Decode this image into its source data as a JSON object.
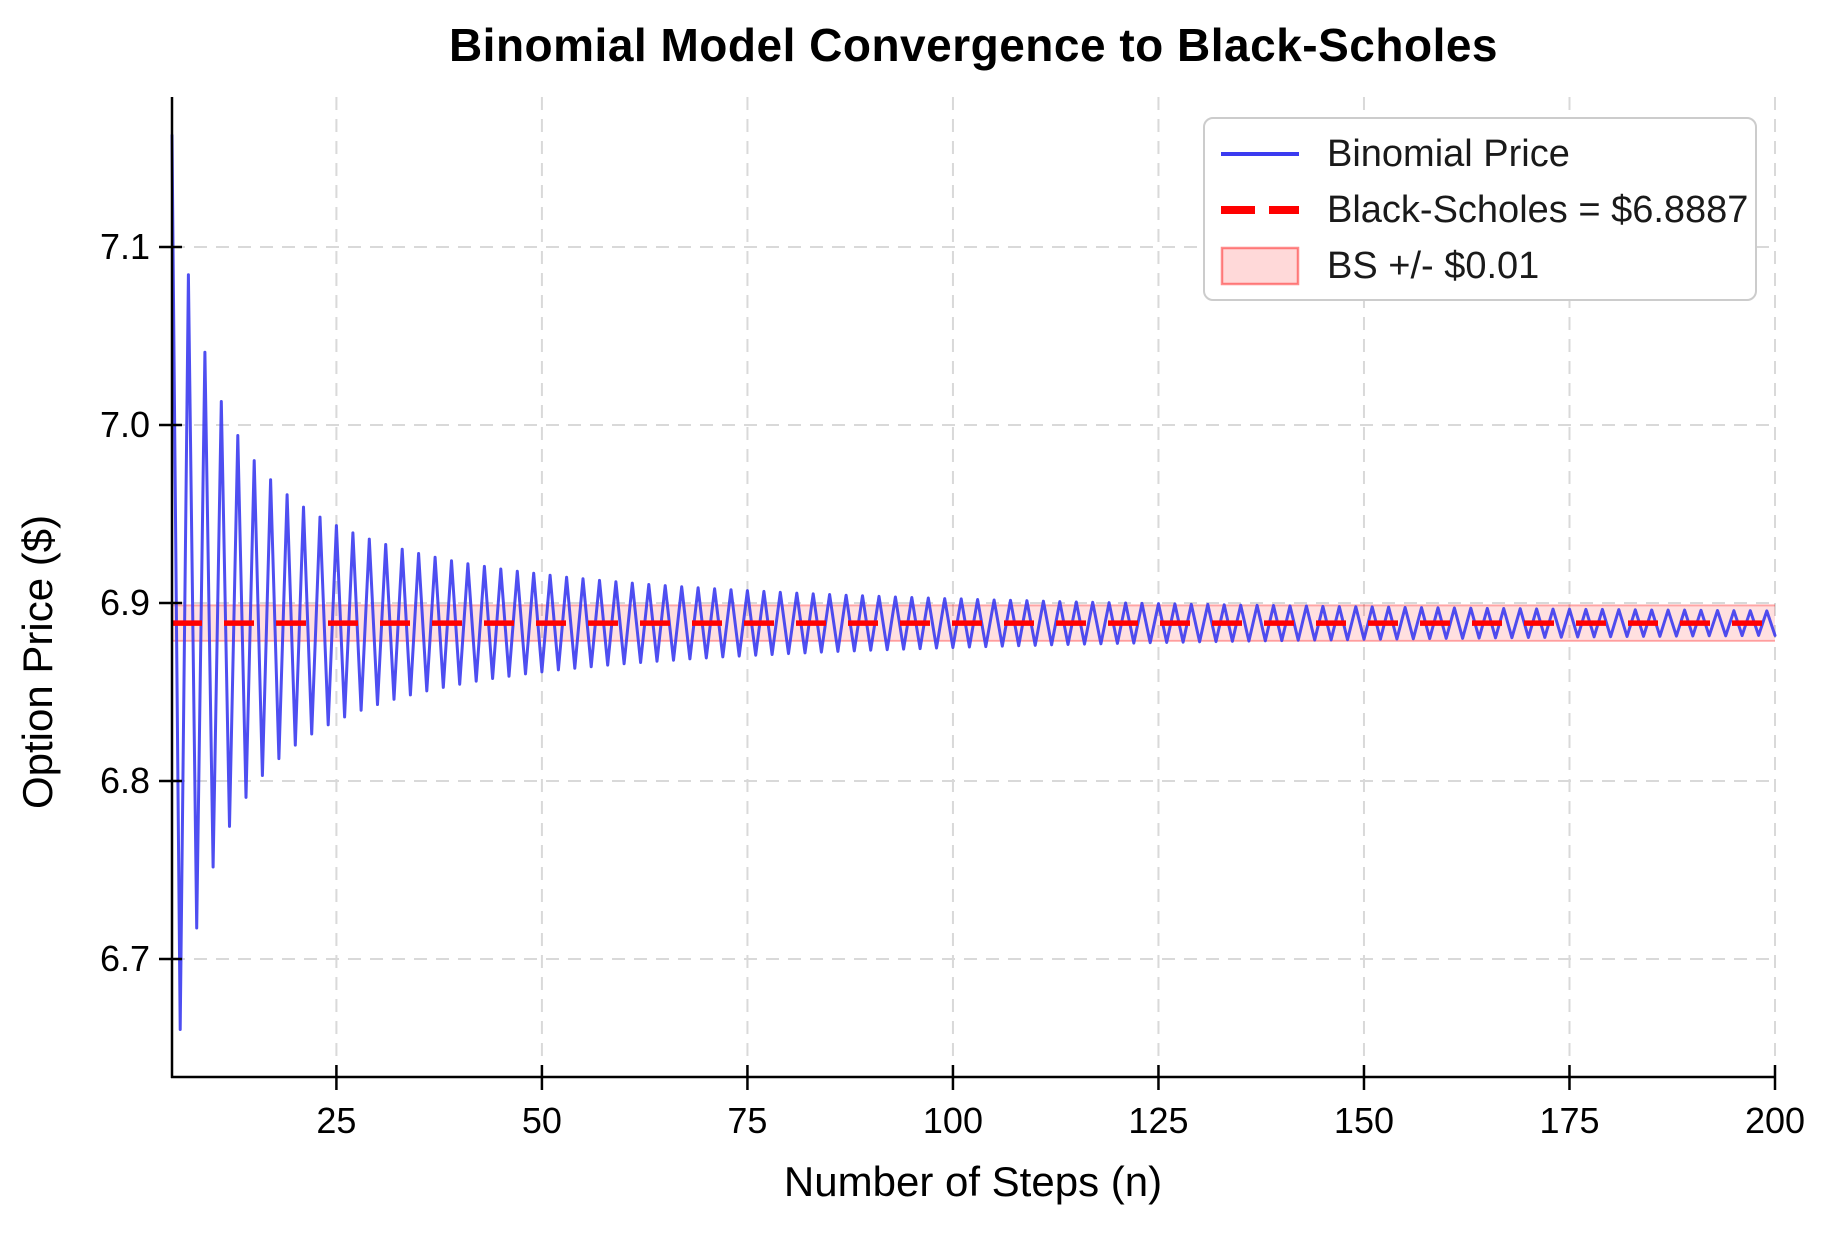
{
  "title": "Binomial Model Convergence to Black-Scholes",
  "axes": {
    "xlabel": "Number of Steps (n)",
    "ylabel": "Option Price ($)",
    "x_ticks": [
      25,
      50,
      75,
      100,
      125,
      150,
      175,
      200
    ],
    "y_ticks": [
      7.1,
      7.0,
      6.9,
      6.8,
      6.7
    ],
    "xlim": [
      5,
      200
    ],
    "ylim": [
      6.6337,
      7.1843
    ]
  },
  "legend": {
    "items": [
      {
        "label": "Binomial Price",
        "type": "solid-line",
        "color": "#3b3bf0"
      },
      {
        "label": "Black-Scholes = $6.8887",
        "type": "dashed-line",
        "color": "#ff0000"
      },
      {
        "label": "BS +/- $0.01",
        "type": "band",
        "color": "#ff0000"
      }
    ]
  },
  "colors": {
    "binomial_line": "#3b3bf0",
    "bs_line": "#ff0000",
    "band_fill_color": "#ff0000",
    "band_fill_alpha": 0.12,
    "band_edge_alpha": 0.3,
    "grid": "#d9d9d9",
    "spine": "#000000",
    "text": "#000000"
  },
  "chart_data": {
    "type": "line",
    "title": "Binomial Model Convergence to Black-Scholes",
    "xlabel": "Number of Steps (n)",
    "ylabel": "Option Price ($)",
    "xlim": [
      5,
      200
    ],
    "ylim": [
      6.6337,
      7.1843
    ],
    "grid": true,
    "legend_position": "upper right",
    "bs_price": 6.8887,
    "band_halfwidth": 0.01,
    "series": [
      {
        "name": "Binomial Price",
        "x_range": [
          5,
          200,
          1
        ],
        "y": [
          7.1627,
          6.6604,
          7.0844,
          6.7174,
          7.0409,
          6.7517,
          7.0132,
          6.7745,
          6.9941,
          6.7908,
          6.98,
          6.8031,
          6.9693,
          6.8126,
          6.9608,
          6.8202,
          6.9539,
          6.8264,
          6.9483,
          6.8316,
          6.9435,
          6.836,
          6.9394,
          6.8398,
          6.9359,
          6.843,
          6.9329,
          6.8459,
          6.9302,
          6.8484,
          6.9278,
          6.8506,
          6.9257,
          6.8526,
          6.9238,
          6.8544,
          6.9221,
          6.8561,
          6.9206,
          6.8576,
          6.9191,
          6.8589,
          6.9178,
          6.8602,
          6.9167,
          6.8613,
          6.9156,
          6.8624,
          6.9145,
          6.8633,
          6.9136,
          6.8642,
          6.9127,
          6.8651,
          6.9119,
          6.8659,
          6.9112,
          6.8666,
          6.9104,
          6.8673,
          6.9098,
          6.8679,
          6.9091,
          6.8686,
          6.9086,
          6.8691,
          6.908,
          6.8697,
          6.9075,
          6.8702,
          6.907,
          6.8707,
          6.9065,
          6.8711,
          6.906,
          6.8716,
          6.9056,
          6.872,
          6.9052,
          6.8724,
          6.9048,
          6.8728,
          6.9044,
          6.8731,
          6.9041,
          6.8735,
          6.9038,
          6.8738,
          6.9034,
          6.8741,
          6.9031,
          6.8744,
          6.9028,
          6.8747,
          6.9025,
          6.875,
          6.9023,
          6.8753,
          6.902,
          6.8755,
          6.9017,
          6.8758,
          6.9015,
          6.876,
          6.9013,
          6.8762,
          6.901,
          6.8765,
          6.9008,
          6.8767,
          6.9006,
          6.8769,
          6.9004,
          6.8771,
          6.9002,
          6.8773,
          6.9,
          6.8775,
          6.8998,
          6.8777,
          6.8997,
          6.8778,
          6.8995,
          6.878,
          6.8993,
          6.8782,
          6.8992,
          6.8783,
          6.899,
          6.8785,
          6.8988,
          6.8786,
          6.8987,
          6.8788,
          6.8986,
          6.8789,
          6.8984,
          6.8791,
          6.8983,
          6.8792,
          6.8981,
          6.8793,
          6.898,
          6.8794,
          6.8979,
          6.8796,
          6.8978,
          6.8797,
          6.8977,
          6.8798,
          6.8975,
          6.8799,
          6.8974,
          6.88,
          6.8973,
          6.8801,
          6.8972,
          6.8802,
          6.8971,
          6.8803,
          6.897,
          6.8804,
          6.8969,
          6.8805,
          6.8968,
          6.8806,
          6.8967,
          6.8807,
          6.8966,
          6.8808,
          6.8965,
          6.8809,
          6.8964,
          6.881,
          6.8964,
          6.8811,
          6.8963,
          6.8812,
          6.8962,
          6.8813,
          6.8961,
          6.8813,
          6.896,
          6.8814,
          6.896,
          6.8815,
          6.8959,
          6.8816,
          6.8958,
          6.8816,
          6.8957,
          6.8817,
          6.8957,
          6.8818,
          6.8956,
          6.8818
        ]
      }
    ]
  }
}
